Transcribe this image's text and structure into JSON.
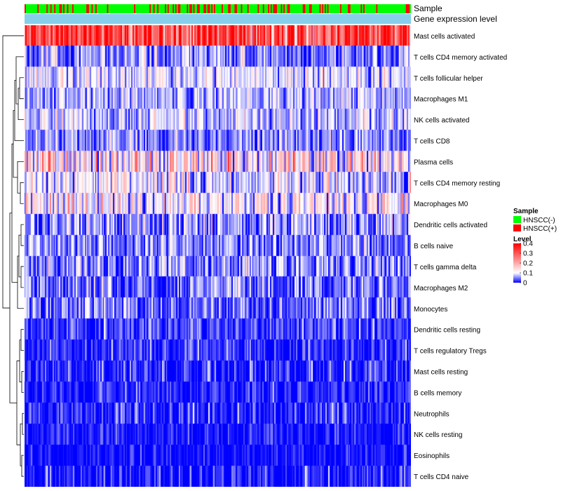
{
  "chart_data": {
    "type": "heatmap",
    "title": "",
    "rows": [
      "Mast cells activated",
      "T cells CD4 memory activated",
      "T cells follicular helper",
      "Macrophages M1",
      "NK cells activated",
      "T cells CD8",
      "Plasma cells",
      "T cells CD4 memory resting",
      "Macrophages M0",
      "Dendritic cells activated",
      "B cells naive",
      "T cells gamma delta",
      "Macrophages M2",
      "Monocytes",
      "Dendritic cells resting",
      "T cells regulatory  Tregs",
      "Mast cells resting",
      "B cells memory",
      "Neutrophils",
      "NK cells resting",
      "Eosinophils",
      "T cells CD4 naive"
    ],
    "row_means": [
      0.32,
      0.05,
      0.09,
      0.07,
      0.08,
      0.05,
      0.13,
      0.09,
      0.11,
      0.06,
      0.05,
      0.05,
      0.04,
      0.04,
      0.02,
      0.015,
      0.008,
      0.01,
      0.01,
      0.006,
      0.004,
      0.006
    ],
    "row_spread": [
      0.09,
      0.04,
      0.035,
      0.035,
      0.035,
      0.035,
      0.08,
      0.05,
      0.06,
      0.045,
      0.035,
      0.04,
      0.035,
      0.035,
      0.03,
      0.025,
      0.03,
      0.025,
      0.03,
      0.02,
      0.015,
      0.03
    ],
    "n_samples": 300,
    "annotation_rows": [
      "Sample",
      "Gene expression level"
    ],
    "sample_groups": [
      "HNSCC(-)",
      "HNSCC(+)"
    ],
    "group_colors": [
      "#00FF00",
      "#FF0000"
    ],
    "expression_bar_color": "#87CEEB",
    "color_scale": {
      "title": "Level",
      "min": 0,
      "max": 0.4,
      "stops": [
        0,
        0.1,
        0.2,
        0.3,
        0.4
      ],
      "colors": [
        "#0000FF",
        "#FFFFFF",
        "#FF0000"
      ],
      "tick_labels": [
        "0",
        "0.1",
        "0.2",
        "0.3",
        "0.4"
      ]
    },
    "legend": {
      "sample_title": "Sample",
      "level_title": "Level",
      "position": "right"
    }
  }
}
